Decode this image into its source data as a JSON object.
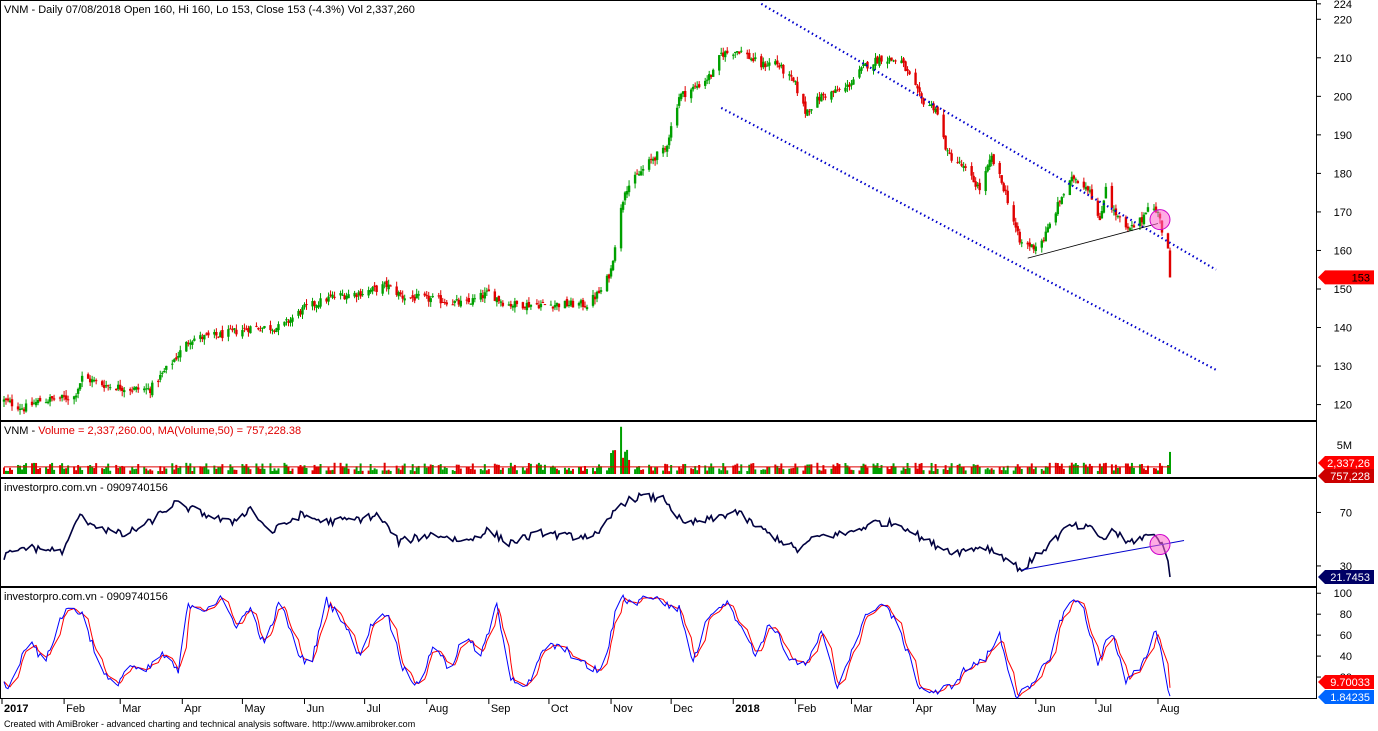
{
  "colors": {
    "up": "#00a000",
    "down": "#e00000",
    "trendline": "#0000cc",
    "rsi": "#000040",
    "stoch_k": "#0000ff",
    "stoch_d": "#ff0000",
    "highlight": "#ff66cc",
    "price_tag": "#ff0000",
    "rsi_tag": "#000066",
    "stoch_tag_k": "#0066ff",
    "stoch_tag_d": "#ff0000"
  },
  "header": {
    "price_title": "VNM - Daily 07/08/2018 Open 160, Hi 160, Lo 153, Close 153 (-4.3%) Vol 2,337,260",
    "volume_prefix": "VNM - ",
    "volume_label": "Volume = 2,337,260.00,",
    "volume_ma_label": "MA(Volume,50) = 757,228.38",
    "rsi_title": "investorpro.com.vn - 0909740156",
    "stoch_title": "investorpro.com.vn - 0909740156"
  },
  "footer": "Created with AmiBroker - advanced charting and technical analysis software. http://www.amibroker.com",
  "price_axis": {
    "ticks": [
      "224",
      "220",
      "210",
      "200",
      "190",
      "180",
      "170",
      "160",
      "150",
      "140",
      "130",
      "120"
    ],
    "tag": "153"
  },
  "volume_axis": {
    "ticks": [
      "5M"
    ],
    "tag_volume": "2,337,26",
    "tag_ma": "757,228"
  },
  "rsi_axis": {
    "ticks": [
      "70",
      "30"
    ],
    "tag": "21.7453"
  },
  "stoch_axis": {
    "ticks": [
      "100",
      "80",
      "60",
      "40",
      "20"
    ],
    "tag_d": "9.70033",
    "tag_k": "1.84235"
  },
  "x_axis": {
    "labels": [
      {
        "text": "2017",
        "bold": true
      },
      {
        "text": "Feb"
      },
      {
        "text": "Mar"
      },
      {
        "text": "Apr"
      },
      {
        "text": "May"
      },
      {
        "text": "Jun"
      },
      {
        "text": "Jul"
      },
      {
        "text": "Aug"
      },
      {
        "text": "Sep"
      },
      {
        "text": "Oct"
      },
      {
        "text": "Nov"
      },
      {
        "text": "Dec"
      },
      {
        "text": "2018",
        "bold": true
      },
      {
        "text": "Feb"
      },
      {
        "text": "Mar"
      },
      {
        "text": "Apr"
      },
      {
        "text": "May"
      },
      {
        "text": "Jun"
      },
      {
        "text": "Jul"
      },
      {
        "text": "Aug"
      }
    ]
  },
  "chart_data": {
    "type": "candlestick",
    "title": "VNM - Daily 07/08/2018 Open 160, Hi 160, Lo 153, Close 153 (-4.3%) Vol 2,337,260",
    "price_range": [
      116,
      225
    ],
    "price_anchors": [
      [
        "2017-01-02",
        121
      ],
      [
        "2017-01-12",
        119
      ],
      [
        "2017-01-20",
        121
      ],
      [
        "2017-02-06",
        122
      ],
      [
        "2017-02-10",
        127
      ],
      [
        "2017-02-22",
        125
      ],
      [
        "2017-03-08",
        124
      ],
      [
        "2017-03-16",
        124
      ],
      [
        "2017-03-30",
        133
      ],
      [
        "2017-04-05",
        137
      ],
      [
        "2017-04-20",
        138
      ],
      [
        "2017-05-05",
        140
      ],
      [
        "2017-05-20",
        140
      ],
      [
        "2017-06-01",
        145
      ],
      [
        "2017-06-15",
        148
      ],
      [
        "2017-06-29",
        149
      ],
      [
        "2017-07-07",
        150
      ],
      [
        "2017-07-12",
        151
      ],
      [
        "2017-07-20",
        148
      ],
      [
        "2017-08-10",
        147
      ],
      [
        "2017-08-20",
        146
      ],
      [
        "2017-09-01",
        149
      ],
      [
        "2017-09-10",
        146
      ],
      [
        "2017-10-05",
        146
      ],
      [
        "2017-10-20",
        146
      ],
      [
        "2017-10-28",
        150
      ],
      [
        "2017-11-01",
        155
      ],
      [
        "2017-11-04",
        165
      ],
      [
        "2017-11-08",
        176
      ],
      [
        "2017-11-12",
        178
      ],
      [
        "2017-11-22",
        184
      ],
      [
        "2017-11-28",
        186
      ],
      [
        "2017-12-05",
        200
      ],
      [
        "2017-12-15",
        203
      ],
      [
        "2017-12-22",
        206
      ],
      [
        "2017-12-26",
        211
      ],
      [
        "2018-01-04",
        212
      ],
      [
        "2018-01-15",
        208
      ],
      [
        "2018-01-22",
        209
      ],
      [
        "2018-02-01",
        203
      ],
      [
        "2018-02-06",
        196
      ],
      [
        "2018-02-14",
        200
      ],
      [
        "2018-02-26",
        202
      ],
      [
        "2018-03-08",
        208
      ],
      [
        "2018-03-16",
        210
      ],
      [
        "2018-03-26",
        209
      ],
      [
        "2018-04-05",
        199
      ],
      [
        "2018-04-12",
        197
      ],
      [
        "2018-04-18",
        185
      ],
      [
        "2018-04-25",
        182
      ],
      [
        "2018-05-04",
        176
      ],
      [
        "2018-05-10",
        184
      ],
      [
        "2018-05-17",
        175
      ],
      [
        "2018-05-24",
        162
      ],
      [
        "2018-05-31",
        161
      ],
      [
        "2018-06-05",
        163
      ],
      [
        "2018-06-14",
        174
      ],
      [
        "2018-06-20",
        179
      ],
      [
        "2018-06-28",
        176
      ],
      [
        "2018-07-03",
        167
      ],
      [
        "2018-07-06",
        177
      ],
      [
        "2018-07-10",
        170
      ],
      [
        "2018-07-17",
        165
      ],
      [
        "2018-07-24",
        168
      ],
      [
        "2018-07-27",
        172
      ],
      [
        "2018-07-31",
        170
      ],
      [
        "2018-08-02",
        169
      ],
      [
        "2018-08-03",
        165
      ],
      [
        "2018-08-06",
        160
      ],
      [
        "2018-08-07",
        153
      ]
    ],
    "last_bar": {
      "date": "2018-08-07",
      "open": 160,
      "high": 160,
      "low": 153,
      "close": 153,
      "volume": 2337260,
      "change_pct": -4.3
    },
    "channel": [
      {
        "from": [
          "2017-12-26",
          197
        ],
        "to": [
          "2018-08-30",
          129
        ]
      },
      {
        "from": [
          "2018-01-15",
          224
        ],
        "to": [
          "2018-08-30",
          155
        ]
      }
    ],
    "support_line": {
      "from": [
        "2018-05-28",
        158
      ],
      "to": [
        "2018-08-01",
        167
      ]
    },
    "volume": {
      "ma50": 757228.38,
      "last": 2337260,
      "range": [
        0,
        6000000
      ],
      "spike": [
        "2017-11-06",
        5000000
      ]
    },
    "rsi": {
      "range": [
        15,
        95
      ],
      "last": 21.7453,
      "anchors": [
        [
          "2017-01-02",
          37
        ],
        [
          "2017-01-12",
          44
        ],
        [
          "2017-02-01",
          41
        ],
        [
          "2017-02-08",
          67
        ],
        [
          "2017-02-22",
          57
        ],
        [
          "2017-03-03",
          53
        ],
        [
          "2017-03-15",
          62
        ],
        [
          "2017-03-28",
          77
        ],
        [
          "2017-04-10",
          70
        ],
        [
          "2017-04-25",
          62
        ],
        [
          "2017-05-05",
          73
        ],
        [
          "2017-05-15",
          55
        ],
        [
          "2017-05-30",
          68
        ],
        [
          "2017-06-12",
          63
        ],
        [
          "2017-06-28",
          65
        ],
        [
          "2017-07-08",
          68
        ],
        [
          "2017-07-18",
          48
        ],
        [
          "2017-08-05",
          54
        ],
        [
          "2017-08-20",
          48
        ],
        [
          "2017-09-01",
          57
        ],
        [
          "2017-09-10",
          47
        ],
        [
          "2017-09-28",
          55
        ],
        [
          "2017-10-10",
          52
        ],
        [
          "2017-10-26",
          53
        ],
        [
          "2017-11-05",
          76
        ],
        [
          "2017-11-15",
          82
        ],
        [
          "2017-11-28",
          80
        ],
        [
          "2017-12-07",
          61
        ],
        [
          "2017-12-22",
          65
        ],
        [
          "2018-01-02",
          71
        ],
        [
          "2018-01-12",
          60
        ],
        [
          "2018-02-02",
          42
        ],
        [
          "2018-02-12",
          52
        ],
        [
          "2018-02-26",
          54
        ],
        [
          "2018-03-14",
          63
        ],
        [
          "2018-03-26",
          61
        ],
        [
          "2018-04-08",
          48
        ],
        [
          "2018-04-22",
          40
        ],
        [
          "2018-05-06",
          45
        ],
        [
          "2018-05-15",
          38
        ],
        [
          "2018-05-25",
          27
        ],
        [
          "2018-06-06",
          44
        ],
        [
          "2018-06-18",
          60
        ],
        [
          "2018-06-28",
          58
        ],
        [
          "2018-07-05",
          50
        ],
        [
          "2018-07-10",
          57
        ],
        [
          "2018-07-16",
          47
        ],
        [
          "2018-07-27",
          53
        ],
        [
          "2018-08-01",
          51
        ],
        [
          "2018-08-03",
          48
        ],
        [
          "2018-08-06",
          32
        ],
        [
          "2018-08-07",
          21.7
        ]
      ],
      "trendline": {
        "from": [
          "2018-05-25",
          27
        ],
        "to": [
          "2018-08-14",
          49
        ]
      }
    },
    "stochastic": {
      "range": [
        0,
        105
      ],
      "k_last": 1.84235,
      "d_last": 9.70033,
      "k_anchors": [
        [
          "2017-01-02",
          15
        ],
        [
          "2017-01-05",
          10
        ],
        [
          "2017-01-15",
          60
        ],
        [
          "2017-01-22",
          30
        ],
        [
          "2017-01-30",
          75
        ],
        [
          "2017-02-04",
          88
        ],
        [
          "2017-02-10",
          80
        ],
        [
          "2017-02-20",
          25
        ],
        [
          "2017-02-26",
          10
        ],
        [
          "2017-03-06",
          32
        ],
        [
          "2017-03-12",
          22
        ],
        [
          "2017-03-22",
          42
        ],
        [
          "2017-03-30",
          25
        ],
        [
          "2017-04-04",
          90
        ],
        [
          "2017-04-12",
          85
        ],
        [
          "2017-04-20",
          94
        ],
        [
          "2017-04-28",
          70
        ],
        [
          "2017-05-05",
          85
        ],
        [
          "2017-05-12",
          50
        ],
        [
          "2017-05-20",
          94
        ],
        [
          "2017-05-28",
          45
        ],
        [
          "2017-06-04",
          30
        ],
        [
          "2017-06-12",
          93
        ],
        [
          "2017-06-20",
          75
        ],
        [
          "2017-06-28",
          40
        ],
        [
          "2017-07-05",
          72
        ],
        [
          "2017-07-12",
          82
        ],
        [
          "2017-07-20",
          30
        ],
        [
          "2017-07-28",
          10
        ],
        [
          "2017-08-05",
          55
        ],
        [
          "2017-08-12",
          25
        ],
        [
          "2017-08-20",
          60
        ],
        [
          "2017-08-28",
          40
        ],
        [
          "2017-09-05",
          88
        ],
        [
          "2017-09-12",
          20
        ],
        [
          "2017-09-20",
          10
        ],
        [
          "2017-09-30",
          52
        ],
        [
          "2017-10-10",
          45
        ],
        [
          "2017-10-20",
          30
        ],
        [
          "2017-10-28",
          25
        ],
        [
          "2017-11-05",
          97
        ],
        [
          "2017-11-12",
          90
        ],
        [
          "2017-11-20",
          98
        ],
        [
          "2017-11-28",
          90
        ],
        [
          "2017-12-05",
          85
        ],
        [
          "2017-12-12",
          35
        ],
        [
          "2017-12-20",
          80
        ],
        [
          "2017-12-28",
          92
        ],
        [
          "2018-01-05",
          70
        ],
        [
          "2018-01-12",
          40
        ],
        [
          "2018-01-20",
          75
        ],
        [
          "2018-01-28",
          40
        ],
        [
          "2018-02-06",
          30
        ],
        [
          "2018-02-14",
          62
        ],
        [
          "2018-02-22",
          10
        ],
        [
          "2018-03-02",
          50
        ],
        [
          "2018-03-10",
          85
        ],
        [
          "2018-03-18",
          90
        ],
        [
          "2018-03-26",
          60
        ],
        [
          "2018-04-04",
          10
        ],
        [
          "2018-04-12",
          5
        ],
        [
          "2018-04-20",
          12
        ],
        [
          "2018-04-28",
          30
        ],
        [
          "2018-05-06",
          35
        ],
        [
          "2018-05-14",
          60
        ],
        [
          "2018-05-22",
          2
        ],
        [
          "2018-05-30",
          10
        ],
        [
          "2018-06-08",
          40
        ],
        [
          "2018-06-16",
          90
        ],
        [
          "2018-06-24",
          93
        ],
        [
          "2018-07-02",
          30
        ],
        [
          "2018-07-08",
          70
        ],
        [
          "2018-07-16",
          15
        ],
        [
          "2018-07-24",
          30
        ],
        [
          "2018-07-31",
          66
        ],
        [
          "2018-08-04",
          30
        ],
        [
          "2018-08-07",
          1.8
        ]
      ]
    }
  }
}
